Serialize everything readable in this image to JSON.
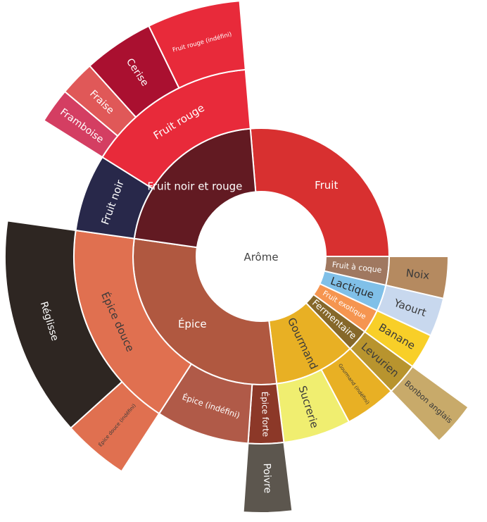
{
  "chart_data": {
    "type": "sunburst",
    "title": "",
    "root": "Arôme",
    "children": [
      {
        "label": "Fruit",
        "start": -4.8,
        "end": 90,
        "color": "#d83030",
        "text": "#ffffff",
        "children": []
      },
      {
        "label": "Fruit à coque",
        "start": 90,
        "end": 103,
        "color": "#a07860",
        "text": "#ffffff",
        "children": [
          {
            "label": "Noix",
            "start": 90,
            "end": 103,
            "color": "#b58a60",
            "text": "#3a3a3a"
          }
        ]
      },
      {
        "label": "Lactique",
        "start": 103,
        "end": 115,
        "color": "#80c0e8",
        "text": "#2a2a2a",
        "children": [
          {
            "label": "Yaourt",
            "start": 103,
            "end": 115,
            "color": "#c8d8ee",
            "text": "#3a3a3a"
          }
        ]
      },
      {
        "label": "Fruit exotique",
        "start": 115,
        "end": 126,
        "color": "#f59550",
        "text": "#ffffff",
        "children": [
          {
            "label": "Banane",
            "start": 115,
            "end": 126,
            "color": "#f8cf28",
            "text": "#3a3a3a"
          }
        ]
      },
      {
        "label": "Fermentaire",
        "start": 126,
        "end": 136,
        "color": "#86682a",
        "text": "#ffffff",
        "children": [
          {
            "label": "Levurien",
            "start": 126,
            "end": 136,
            "color": "#b8942e",
            "text": "#3a3a3a",
            "children": [
              {
                "label": "Bonbon anglais",
                "start": 126,
                "end": 136,
                "color": "#c8aa6a",
                "text": "#3a3a3a"
              }
            ]
          }
        ]
      },
      {
        "label": "Gourmand",
        "start": 136,
        "end": 173,
        "color": "#e8b024",
        "text": "#3a3a3a",
        "children": [
          {
            "label": "Gourmand (indéfini)",
            "start": 136,
            "end": 152,
            "color": "#e8b024",
            "text": "#3a3a3a"
          },
          {
            "label": "Sucrerie",
            "start": 152,
            "end": 173,
            "color": "#f0ee70",
            "text": "#3a3a3a"
          }
        ]
      },
      {
        "label": "Épice",
        "start": 173,
        "end": 278,
        "color": "#b05840",
        "text": "#ffffff",
        "children": [
          {
            "label": "Épice forte",
            "start": 173,
            "end": 184,
            "color": "#8c3828",
            "text": "#ffffff",
            "children": [
              {
                "label": "Poivre",
                "start": 173,
                "end": 184,
                "color": "#5c564e",
                "text": "#ffffff"
              }
            ]
          },
          {
            "label": "Épice (indéfini)",
            "start": 184,
            "end": 213,
            "color": "#b05a48",
            "text": "#ffffff"
          },
          {
            "label": "Épice douce",
            "start": 213,
            "end": 278,
            "color": "#e07050",
            "text": "#3a3a3a",
            "children": [
              {
                "label": "Épice douce (indéfini)",
                "start": 213,
                "end": 228,
                "color": "#e07050",
                "text": "#3a3a3a"
              },
              {
                "label": "Réglisse",
                "start": 228,
                "end": 278,
                "color": "#2e2622",
                "text": "#ffffff"
              }
            ]
          }
        ]
      },
      {
        "label": "Fruit noir et rouge",
        "start": 278,
        "end": 355.2,
        "color": "#621a22",
        "text": "#ffffff",
        "children": [
          {
            "label": "Fruit noir",
            "start": 278,
            "end": 302,
            "color": "#28284a",
            "text": "#ffffff"
          },
          {
            "label": "Fruit rouge",
            "start": 302,
            "end": 355.2,
            "color": "#e82a3a",
            "text": "#ffffff",
            "children": [
              {
                "label": "Framboise",
                "start": 302,
                "end": 310,
                "color": "#d43e62",
                "text": "#ffffff"
              },
              {
                "label": "Fraise",
                "start": 310,
                "end": 318,
                "color": "#e05858",
                "text": "#ffffff"
              },
              {
                "label": "Cerise",
                "start": 318,
                "end": 334,
                "color": "#aa1030",
                "text": "#ffffff"
              },
              {
                "label": "Fruit rouge (indéfini)",
                "start": 334,
                "end": 355.2,
                "color": "#e82a3a",
                "text": "#ffffff"
              }
            ]
          }
        ]
      }
    ]
  }
}
